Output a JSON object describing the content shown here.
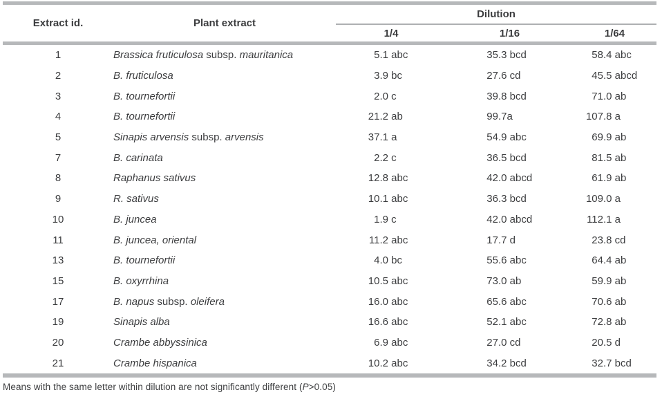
{
  "table": {
    "header": {
      "id_col": "Extract id.",
      "plant_col": "Plant extract",
      "group_col": "Dilution",
      "dilution_cols": [
        "1/4",
        "1/16",
        "1/64"
      ]
    },
    "rows": [
      {
        "id": "1",
        "plant": "Brassica fruticulosa subsp. mauritanica",
        "values": [
          "5.1 abc",
          "35.3 bcd",
          "58.4 abc"
        ]
      },
      {
        "id": "2",
        "plant": "B. fruticulosa",
        "values": [
          "3.9 bc",
          "27.6 cd",
          "45.5 abcd"
        ]
      },
      {
        "id": "3",
        "plant": "B. tournefortii",
        "values": [
          "2.0 c",
          "39.8 bcd",
          "71.0 ab"
        ]
      },
      {
        "id": "4",
        "plant": "B. tournefortii",
        "values": [
          "21.2 ab",
          "99.7a",
          "107.8 a"
        ]
      },
      {
        "id": "5",
        "plant": "Sinapis arvensis subsp. arvensis",
        "values": [
          "37.1 a",
          "54.9 abc",
          "69.9 ab"
        ]
      },
      {
        "id": "7",
        "plant": "B. carinata",
        "values": [
          "2.2 c",
          "36.5 bcd",
          "81.5 ab"
        ]
      },
      {
        "id": "8",
        "plant": "Raphanus sativus",
        "values": [
          "12.8 abc",
          "42.0 abcd",
          "61.9 ab"
        ]
      },
      {
        "id": "9",
        "plant": "R. sativus",
        "values": [
          "10.1 abc",
          "36.3 bcd",
          "109.0 a"
        ]
      },
      {
        "id": "10",
        "plant": "B. juncea",
        "values": [
          "1.9 c",
          "42.0 abcd",
          "112.1 a"
        ]
      },
      {
        "id": "11",
        "plant": "B. juncea, oriental",
        "values": [
          "11.2 abc",
          "17.7 d",
          "23.8 cd"
        ]
      },
      {
        "id": "13",
        "plant": "B. tournefortii",
        "values": [
          "4.0 bc",
          "55.6 abc",
          "64.4 ab"
        ]
      },
      {
        "id": "15",
        "plant": "B. oxyrrhina",
        "values": [
          "10.5 abc",
          "73.0 ab",
          "59.9 ab"
        ]
      },
      {
        "id": "17",
        "plant": "B. napus subsp. oleifera",
        "values": [
          "16.0 abc",
          "65.6 abc",
          "70.6 ab"
        ]
      },
      {
        "id": "19",
        "plant": "Sinapis alba",
        "values": [
          "16.6 abc",
          "52.1 abc",
          "72.8 ab"
        ]
      },
      {
        "id": "20",
        "plant": "Crambe abbyssinica",
        "values": [
          "6.9 abc",
          "27.0 cd",
          "20.5 d"
        ]
      },
      {
        "id": "21",
        "plant": "Crambe hispanica",
        "values": [
          "10.2 abc",
          "34.2 bcd",
          "32.7 bcd"
        ]
      }
    ]
  },
  "footnote": {
    "before_p": "Means with the same letter within dilution are not significantly different (",
    "p_symbol": "P",
    "after_p": ">0.05)"
  },
  "colors": {
    "rule_gray": "#b6b8ba",
    "text": "#3c3d3f"
  }
}
